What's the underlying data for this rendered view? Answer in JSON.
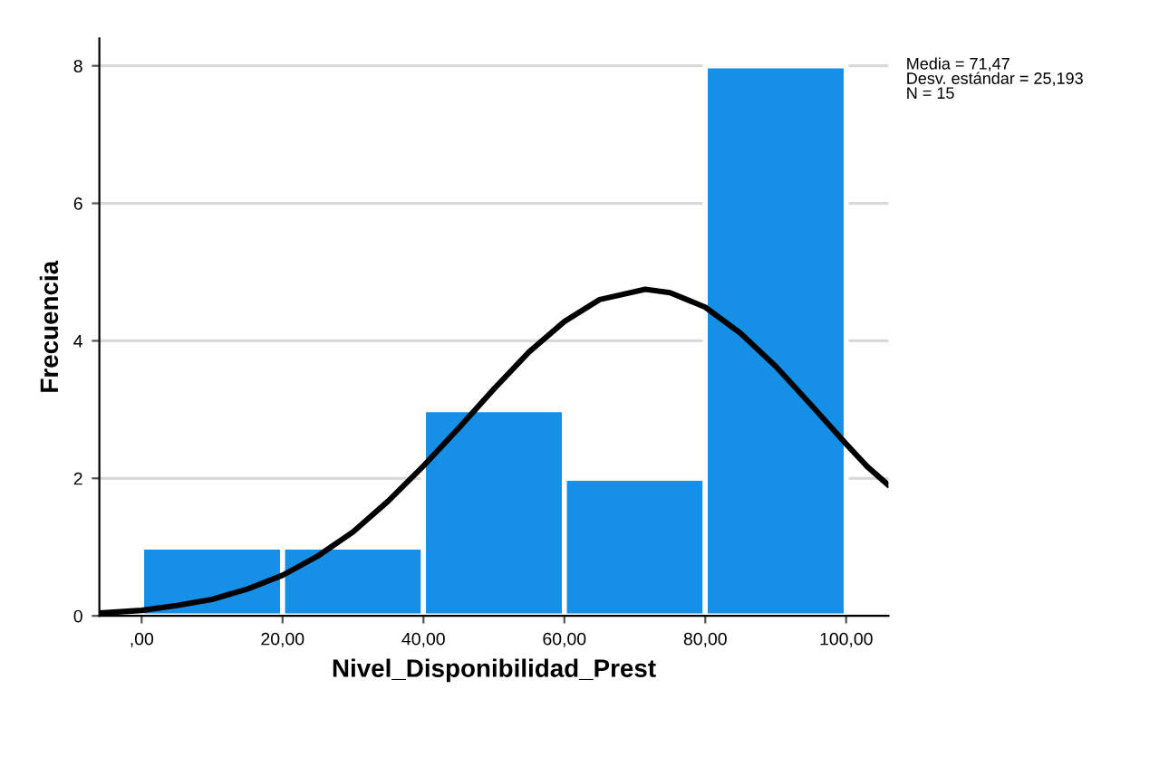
{
  "chart_data": {
    "type": "histogram",
    "xlabel": "Nivel_Disponibilidad_Prest",
    "ylabel": "Frecuencia",
    "bins": [
      0,
      20,
      40,
      60,
      80,
      100
    ],
    "values": [
      1,
      1,
      3,
      2,
      8
    ],
    "color": "#1590e6",
    "series": [
      {
        "type": "line",
        "color": "#000000",
        "x": [
          -6,
          0,
          5,
          10,
          15,
          20,
          25,
          30,
          35,
          40,
          45,
          50,
          55,
          60,
          65,
          71.5,
          75,
          80,
          85,
          90,
          95,
          100,
          103,
          106
        ],
        "values": [
          0.04,
          0.08,
          0.15,
          0.24,
          0.39,
          0.59,
          0.87,
          1.22,
          1.67,
          2.18,
          2.73,
          3.3,
          3.84,
          4.28,
          4.6,
          4.75,
          4.7,
          4.49,
          4.11,
          3.63,
          3.07,
          2.5,
          2.17,
          1.9
        ]
      }
    ],
    "xlim": [
      -6,
      106
    ],
    "ylim": [
      0,
      8.4
    ],
    "xticks": [
      {
        "value": 0,
        "label": ",00"
      },
      {
        "value": 20,
        "label": "20,00"
      },
      {
        "value": 40,
        "label": "40,00"
      },
      {
        "value": 60,
        "label": "60,00"
      },
      {
        "value": 80,
        "label": "80,00"
      },
      {
        "value": 100,
        "label": "100,00"
      }
    ],
    "yticks": [
      0,
      2,
      4,
      6,
      8
    ],
    "grid": "y",
    "annotations": [
      "Media = 71,47\nDesv. estándar = 25,193\nN = 15"
    ]
  }
}
